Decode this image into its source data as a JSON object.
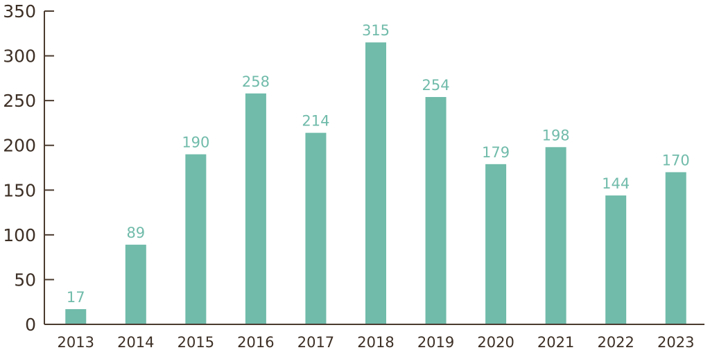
{
  "chart_data": {
    "type": "bar",
    "categories": [
      "2013",
      "2014",
      "2015",
      "2016",
      "2017",
      "2018",
      "2019",
      "2020",
      "2021",
      "2022",
      "2023"
    ],
    "values": [
      17,
      89,
      190,
      258,
      214,
      315,
      254,
      179,
      198,
      144,
      170
    ],
    "data_labels": [
      "17",
      "89",
      "190",
      "258",
      "214",
      "315",
      "254",
      "179",
      "198",
      "144",
      "170"
    ],
    "title": "",
    "xlabel": "",
    "ylabel": "",
    "ylim": [
      0,
      350
    ],
    "yticks": [
      0,
      50,
      100,
      150,
      200,
      250,
      300,
      350
    ],
    "ytick_labels": [
      "0",
      "50",
      "100",
      "150",
      "200",
      "250",
      "300",
      "350"
    ],
    "grid": false,
    "legend": "none",
    "bar_color": "#70bbaa",
    "label_color": "#70bbaa",
    "axis_color": "#4a3a2e"
  }
}
